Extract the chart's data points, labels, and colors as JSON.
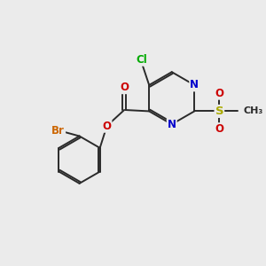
{
  "bg_color": "#ebebeb",
  "bond_color": "#2a2a2a",
  "bond_width": 1.4,
  "atom_colors": {
    "C": "#2a2a2a",
    "N": "#0000cc",
    "O": "#cc0000",
    "S": "#aaaa00",
    "Cl": "#00aa00",
    "Br": "#cc6600"
  },
  "font_size": 8.5,
  "fig_size": [
    3.0,
    3.0
  ],
  "dpi": 100
}
